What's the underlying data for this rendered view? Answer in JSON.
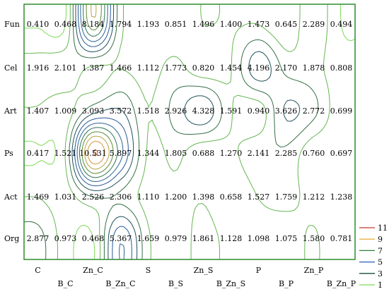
{
  "chart_data": {
    "type": "heatmap",
    "rows": [
      "Fun",
      "Cel",
      "Art",
      "Ps",
      "Act",
      "Org"
    ],
    "columns": [
      "C",
      "B_C",
      "Zn_C",
      "B_Zn_C",
      "S",
      "B_S",
      "Zn_S",
      "B_Zn_S",
      "P",
      "B_P",
      "Zn_P",
      "B_Zn_P"
    ],
    "values": [
      [
        0.41,
        0.468,
        8.184,
        1.794,
        1.193,
        0.851,
        1.496,
        1.4,
        1.473,
        0.645,
        2.289,
        0.494
      ],
      [
        1.916,
        2.101,
        1.387,
        1.466,
        1.112,
        1.773,
        0.82,
        1.454,
        4.196,
        2.17,
        1.878,
        0.808
      ],
      [
        1.407,
        1.009,
        3.093,
        3.572,
        1.518,
        2.926,
        4.328,
        1.591,
        0.94,
        3.626,
        2.772,
        0.699
      ],
      [
        0.417,
        1.521,
        10.531,
        5.897,
        1.344,
        1.805,
        0.688,
        1.27,
        2.141,
        2.285,
        0.76,
        0.697
      ],
      [
        1.469,
        1.031,
        2.526,
        2.306,
        1.11,
        1.2,
        1.398,
        0.658,
        1.527,
        1.759,
        1.212,
        1.238
      ],
      [
        2.877,
        0.973,
        0.468,
        5.367,
        1.659,
        0.979,
        1.861,
        1.128,
        1.098,
        1.075,
        1.58,
        0.781
      ]
    ],
    "cell_labels": [
      [
        "0.410",
        "0.468",
        "8.184",
        "1.794",
        "1.193",
        "0.851",
        "1.496",
        "1.400",
        "1.473",
        "0.645",
        "2.289",
        "0.494"
      ],
      [
        "1.916",
        "2.101",
        "1.387",
        "1.466",
        "1.112",
        "1.773",
        "0.820",
        "1.454",
        "4.196",
        "2.170",
        "1.878",
        "0.808"
      ],
      [
        "1.407",
        "1.009",
        "3.093",
        "3.572",
        "1.518",
        "2.926",
        "4.328",
        "1.591",
        "0.940",
        "3.626",
        "2.772",
        "0.699"
      ],
      [
        "0.417",
        "1.521",
        "10.531",
        "5.897",
        "1.344",
        "1.805",
        "0.688",
        "1.270",
        "2.141",
        "2.285",
        "0.760",
        "0.697"
      ],
      [
        "1.469",
        "1.031",
        "2.526",
        "2.306",
        "1.110",
        "1.200",
        "1.398",
        "0.658",
        "1.527",
        "1.759",
        "1.212",
        "1.238"
      ],
      [
        "2.877",
        "0.973",
        "0.468",
        "5.367",
        "1.659",
        "0.979",
        "1.861",
        "1.128",
        "1.098",
        "1.075",
        "1.580",
        "0.781"
      ]
    ],
    "legend": {
      "levels": [
        11,
        9,
        7,
        5,
        3,
        1
      ],
      "labels": [
        "11",
        "9",
        "7",
        "5",
        "3",
        "1"
      ],
      "colors": [
        "#c0392b",
        "#e8b04a",
        "#2e7d32",
        "#2c5db8",
        "#1b4d3e",
        "#7ed957"
      ]
    },
    "style": "contour",
    "grid": false,
    "legend_position": "right",
    "frame_color": "#2e8b2e"
  }
}
